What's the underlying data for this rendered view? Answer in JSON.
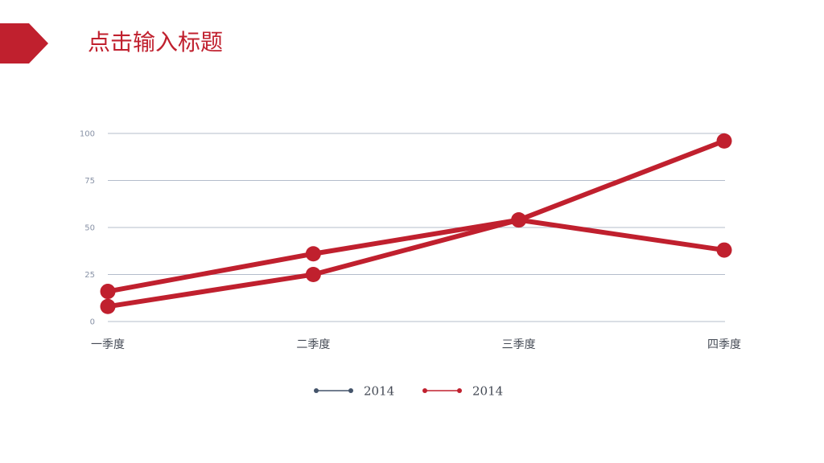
{
  "slide": {
    "title": "点击输入标题",
    "accent_color": "#c0202e"
  },
  "chart_data": {
    "type": "line",
    "categories": [
      "一季度",
      "二季度",
      "三季度",
      "四季度"
    ],
    "ylim": [
      0,
      100
    ],
    "yticks": [
      0,
      25,
      50,
      75,
      100
    ],
    "grid": true,
    "legend_position": "bottom-center",
    "series": [
      {
        "name": "2014",
        "color": "#c0202e",
        "values": [
          8,
          25,
          54,
          96
        ]
      },
      {
        "name": "2014",
        "color": "#c0202e",
        "values": [
          16,
          36,
          54,
          38
        ]
      }
    ],
    "legend": [
      {
        "label": "2014",
        "color": "#44546a"
      },
      {
        "label": "2014",
        "color": "#c0202e"
      }
    ]
  }
}
